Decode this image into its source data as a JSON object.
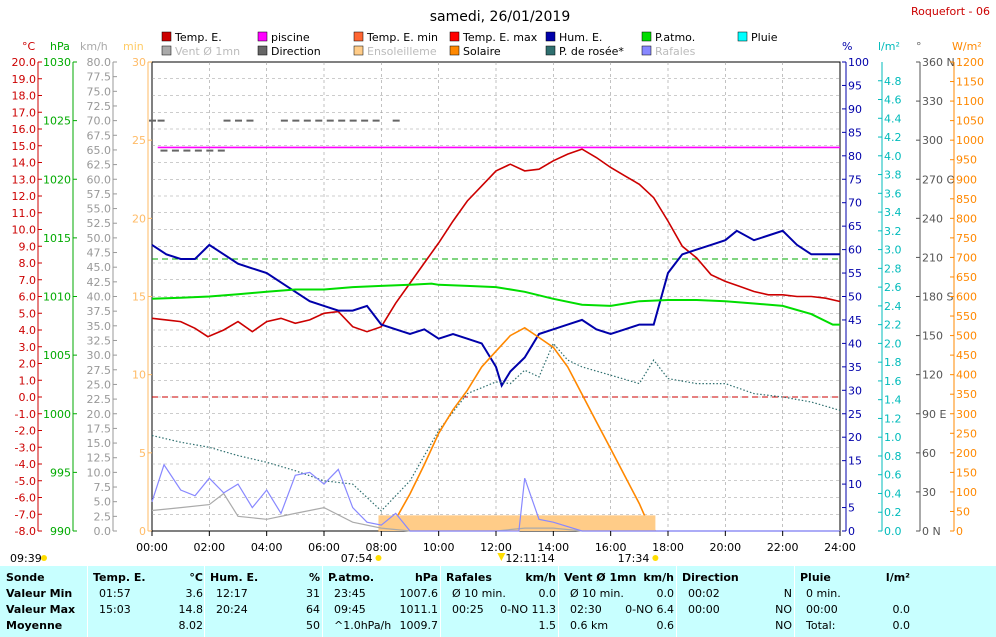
{
  "title": "samedi, 26/01/2019",
  "station": "Roquefort - 06",
  "legend": [
    {
      "label": "Temp. E.",
      "color": "#cc0000",
      "faded": false
    },
    {
      "label": "piscine",
      "color": "#ff00ff",
      "faded": false
    },
    {
      "label": "Temp. E. min",
      "color": "#ff6633",
      "faded": false
    },
    {
      "label": "Temp. E. max",
      "color": "#ff0000",
      "faded": false
    },
    {
      "label": "Hum. E.",
      "color": "#0000aa",
      "faded": false
    },
    {
      "label": "P.atmo.",
      "color": "#00dd00",
      "faded": false
    },
    {
      "label": "Pluie",
      "color": "#00ffff",
      "faded": false
    },
    {
      "label": "Vent Ø 1mn",
      "color": "#aaaaaa",
      "faded": true
    },
    {
      "label": "Direction",
      "color": "#666666",
      "faded": false
    },
    {
      "label": "Ensoleilleme",
      "color": "#ffcc88",
      "faded": true
    },
    {
      "label": "Solaire",
      "color": "#ff8800",
      "faded": false
    },
    {
      "label": "P. de rosée*",
      "color": "#2f6f6f",
      "faded": false
    },
    {
      "label": "Rafales",
      "color": "#8888ff",
      "faded": true
    }
  ],
  "axis_units": {
    "temp": "°C",
    "pressure": "hPa",
    "wind": "km/h",
    "minutes": "min",
    "humidity": "%",
    "rain": "l/m²",
    "direction": "°",
    "solar": "W/m²"
  },
  "sun_events": {
    "first": "09:39",
    "sunrise": "07:54",
    "noon": "12:11:14",
    "sunset": "17:34"
  },
  "stats": {
    "columns": [
      {
        "header": "Sonde",
        "unit": "",
        "rows": [
          "Valeur Min",
          "Valeur Max",
          "Moyenne"
        ]
      },
      {
        "header": "Temp. E.",
        "unit": "°C",
        "rows": [
          [
            "01:57",
            "3.6"
          ],
          [
            "15:03",
            "14.8"
          ],
          [
            "",
            "8.02"
          ]
        ]
      },
      {
        "header": "Hum. E.",
        "unit": "%",
        "rows": [
          [
            "12:17",
            "31"
          ],
          [
            "20:24",
            "64"
          ],
          [
            "",
            "50"
          ]
        ]
      },
      {
        "header": "P.atmo.",
        "unit": "hPa",
        "rows": [
          [
            "23:45",
            "1007.6"
          ],
          [
            "09:45",
            "1011.1"
          ],
          [
            "^1.0hPa/h",
            "1009.7"
          ]
        ]
      },
      {
        "header": "Rafales",
        "unit": "km/h",
        "rows": [
          [
            "Ø 10 min.",
            "0.0"
          ],
          [
            "00:25",
            "0-NO 11.3"
          ],
          [
            "",
            "1.5"
          ]
        ]
      },
      {
        "header": "Vent Ø 1mn",
        "unit": "km/h",
        "rows": [
          [
            "Ø 10 min.",
            "0.0"
          ],
          [
            "02:30",
            "0-NO 6.4"
          ],
          [
            "0.6 km",
            "0.6"
          ]
        ]
      },
      {
        "header": "Direction",
        "unit": "",
        "rows": [
          [
            "00:02",
            "N"
          ],
          [
            "00:00",
            "NO"
          ],
          [
            "",
            "NO"
          ]
        ]
      },
      {
        "header": "Pluie",
        "unit": "l/m²",
        "rows": [
          [
            "0 min.",
            ""
          ],
          [
            "00:00",
            "0.0"
          ],
          [
            "Total:",
            "0.0"
          ]
        ]
      }
    ]
  },
  "chart_data": {
    "type": "line",
    "x_unit": "time",
    "xlim": [
      "00:00",
      "24:00"
    ],
    "x_ticks": [
      "00:00",
      "02:00",
      "04:00",
      "06:00",
      "08:00",
      "10:00",
      "12:00",
      "14:00",
      "16:00",
      "18:00",
      "20:00",
      "22:00",
      "24:00"
    ],
    "axes": {
      "temp": {
        "range": [
          -8.0,
          20.0
        ],
        "step": 1.0
      },
      "pressure": {
        "range": [
          990,
          1030
        ],
        "ticks": [
          990,
          995,
          1000,
          1005,
          1010,
          1015,
          1020,
          1025,
          1030
        ]
      },
      "wind": {
        "range": [
          0.0,
          80.0
        ],
        "step": 2.5
      },
      "minutes": {
        "range": [
          0,
          30
        ],
        "ticks": [
          0,
          5,
          10,
          15,
          20,
          25,
          30
        ]
      },
      "humidity": {
        "range": [
          0,
          100
        ],
        "step": 5
      },
      "rain": {
        "range": [
          0.0,
          5.0
        ],
        "ticks": [
          0.0,
          0.2,
          0.4,
          0.6,
          0.8,
          1.0,
          1.2,
          1.4,
          1.6,
          1.8,
          2.0,
          2.2,
          2.4,
          2.6,
          2.8,
          3.0,
          3.2,
          3.4,
          3.6,
          3.8,
          4.0,
          4.2,
          4.4,
          4.6,
          4.8
        ]
      },
      "direction": {
        "range": [
          0,
          360
        ],
        "ticks": [
          0,
          30,
          60,
          90,
          120,
          150,
          180,
          210,
          240,
          270,
          300,
          330,
          360
        ],
        "labels": {
          "0": "N",
          "90": "E",
          "180": "S",
          "270": "O",
          "360": "N"
        }
      },
      "solar": {
        "range": [
          0,
          1200
        ],
        "step": 50
      }
    },
    "series": [
      {
        "name": "Temp. E.",
        "axis": "temp",
        "color": "#cc0000",
        "x": [
          0,
          0.5,
          1,
          1.5,
          1.95,
          2.5,
          3,
          3.5,
          4,
          4.5,
          5,
          5.5,
          6,
          6.5,
          7,
          7.5,
          8,
          8.5,
          9,
          9.5,
          10,
          10.5,
          11,
          11.5,
          12,
          12.5,
          13,
          13.5,
          14,
          14.5,
          15,
          15.5,
          16,
          16.5,
          17,
          17.5,
          18,
          18.5,
          19,
          19.5,
          20,
          20.5,
          21,
          21.5,
          22,
          22.5,
          23,
          23.5,
          24
        ],
        "y": [
          4.7,
          4.6,
          4.5,
          4.1,
          3.6,
          4.0,
          4.5,
          3.9,
          4.5,
          4.7,
          4.4,
          4.6,
          5.0,
          5.1,
          4.2,
          3.9,
          4.2,
          5.6,
          6.8,
          8.0,
          9.2,
          10.5,
          11.7,
          12.6,
          13.5,
          13.9,
          13.5,
          13.6,
          14.1,
          14.5,
          14.8,
          14.3,
          13.7,
          13.2,
          12.7,
          11.9,
          10.5,
          9.0,
          8.3,
          7.3,
          6.9,
          6.6,
          6.3,
          6.1,
          6.1,
          6.0,
          6.0,
          5.9,
          5.7
        ]
      },
      {
        "name": "piscine",
        "axis": "temp",
        "color": "#ff00ff",
        "x": [
          0.2,
          24
        ],
        "y": [
          14.9,
          14.9
        ]
      },
      {
        "name": "Hum. E.",
        "axis": "humidity",
        "color": "#0000aa",
        "x": [
          0,
          0.5,
          1,
          1.5,
          2,
          2.5,
          3,
          3.5,
          4,
          4.5,
          5,
          5.5,
          6,
          6.5,
          7,
          7.5,
          8,
          8.5,
          9,
          9.5,
          10,
          10.5,
          11,
          11.5,
          12,
          12.2,
          12.5,
          13,
          13.5,
          14,
          14.5,
          15,
          15.5,
          16,
          16.5,
          17,
          17.5,
          18,
          18.5,
          19,
          19.5,
          20,
          20.4,
          21,
          21.5,
          22,
          22.5,
          23,
          23.5,
          24
        ],
        "y": [
          61,
          59,
          58,
          58,
          61,
          59,
          57,
          56,
          55,
          53,
          51,
          49,
          48,
          47,
          47,
          48,
          44,
          43,
          42,
          43,
          41,
          42,
          41,
          40,
          35,
          31,
          34,
          37,
          42,
          43,
          44,
          45,
          43,
          42,
          43,
          44,
          44,
          55,
          59,
          60,
          61,
          62,
          64,
          62,
          63,
          64,
          61,
          59,
          59,
          59
        ]
      },
      {
        "name": "P.atmo.",
        "axis": "pressure",
        "color": "#00dd00",
        "x": [
          0,
          1,
          2,
          3,
          4,
          5,
          6,
          7,
          8,
          9,
          9.75,
          10,
          11,
          12,
          13,
          14,
          15,
          16,
          17,
          18,
          19,
          20,
          21,
          22,
          23,
          23.75,
          24
        ],
        "y": [
          1009.8,
          1009.9,
          1010.0,
          1010.2,
          1010.4,
          1010.6,
          1010.6,
          1010.8,
          1010.9,
          1011.0,
          1011.1,
          1011.0,
          1010.9,
          1010.8,
          1010.4,
          1009.8,
          1009.3,
          1009.2,
          1009.6,
          1009.7,
          1009.7,
          1009.6,
          1009.4,
          1009.2,
          1008.5,
          1007.6,
          1007.6
        ]
      },
      {
        "name": "P. de rosée*",
        "axis": "temp",
        "color": "#2f6f6f",
        "dotted": true,
        "x": [
          0,
          1,
          2,
          3,
          4,
          5,
          6,
          7,
          8,
          9,
          10,
          11,
          12,
          12.5,
          13,
          13.5,
          14,
          14.5,
          15,
          16,
          17,
          17.5,
          18,
          19,
          20,
          21,
          22,
          23,
          24
        ],
        "y": [
          -2.3,
          -2.7,
          -3.0,
          -3.5,
          -3.9,
          -4.4,
          -5.0,
          -5.2,
          -6.8,
          -5.0,
          -2.0,
          0.2,
          0.9,
          0.8,
          1.6,
          1.2,
          3.2,
          2.2,
          1.8,
          1.3,
          0.8,
          2.2,
          1.1,
          0.8,
          0.8,
          0.2,
          0.0,
          -0.3,
          -0.8
        ]
      },
      {
        "name": "Solaire",
        "axis": "solar",
        "color": "#ff8800",
        "x": [
          7.9,
          8.5,
          9,
          9.5,
          10,
          10.5,
          11,
          11.5,
          12,
          12.5,
          13,
          13.5,
          14,
          14.5,
          15,
          15.5,
          16,
          16.5,
          17,
          17.3,
          17.56
        ],
        "y": [
          0,
          30,
          95,
          170,
          250,
          310,
          360,
          420,
          460,
          500,
          520,
          495,
          470,
          420,
          350,
          280,
          210,
          140,
          70,
          20,
          0
        ]
      },
      {
        "name": "Ensoleilleme",
        "axis": "minutes",
        "color": "#ffcc88",
        "x": [
          7.9,
          17.56
        ],
        "y": [
          1,
          1
        ]
      },
      {
        "name": "Vent Ø 1mn",
        "axis": "wind",
        "color": "#aaaaaa",
        "x": [
          0,
          1,
          2,
          2.5,
          3,
          4,
          5,
          6,
          7,
          8,
          9,
          10,
          11,
          12,
          13,
          14,
          15,
          16,
          17,
          18,
          19,
          20,
          21,
          22,
          23,
          24
        ],
        "y": [
          3.5,
          4.0,
          4.5,
          6.4,
          2.5,
          2.0,
          3.0,
          4.0,
          1.5,
          0.5,
          0,
          0,
          0,
          0,
          0.5,
          0.5,
          0,
          0,
          0,
          0,
          0,
          0,
          0,
          0,
          0,
          0
        ]
      },
      {
        "name": "Rafales",
        "axis": "wind",
        "color": "#8888ff",
        "x": [
          0,
          0.42,
          1,
          1.5,
          2,
          2.5,
          3,
          3.5,
          4,
          4.5,
          5,
          5.5,
          6,
          6.5,
          7,
          7.5,
          8,
          8.5,
          9,
          10,
          11,
          12,
          12.8,
          13,
          13.5,
          14,
          15,
          16,
          17,
          18,
          20,
          22,
          24
        ],
        "y": [
          5.0,
          11.3,
          7.0,
          6.0,
          9.0,
          6.5,
          8.0,
          4.0,
          7.0,
          3.0,
          9.5,
          10.0,
          8.0,
          10.5,
          4.0,
          1.5,
          1.0,
          3.0,
          0,
          0,
          0,
          0,
          0,
          9.0,
          2.0,
          1.5,
          0,
          0,
          0,
          0,
          0,
          0,
          0
        ]
      },
      {
        "name": "Direction",
        "axis": "direction",
        "color": "#666666",
        "points": true,
        "x": [
          0.0,
          0.3,
          2.6,
          3.0,
          3.4,
          4.6,
          5.0,
          5.4,
          5.8,
          6.2,
          6.6,
          7.0,
          7.4,
          7.8,
          8.5,
          0.4,
          0.8,
          1.2,
          1.6,
          2.0,
          2.4
        ],
        "y": [
          315,
          315,
          315,
          315,
          315,
          315,
          315,
          315,
          315,
          315,
          315,
          315,
          315,
          315,
          315,
          292,
          292,
          292,
          292,
          292,
          292
        ]
      }
    ],
    "reference_lines": [
      {
        "axis": "humidity",
        "value": 58,
        "color": "#00aa00",
        "dashed": true
      },
      {
        "axis": "temp",
        "value": 0,
        "color": "#cc0000",
        "dashed": true
      }
    ]
  }
}
